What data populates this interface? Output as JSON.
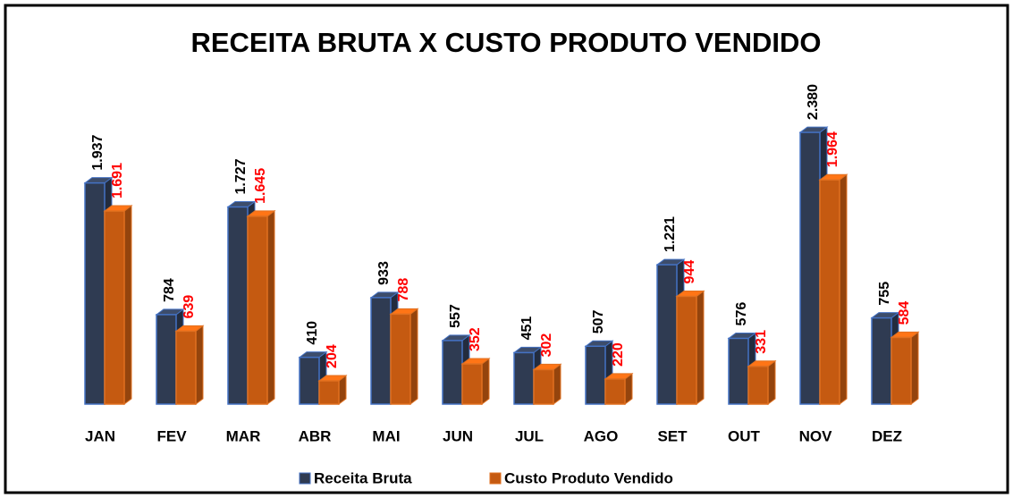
{
  "chart_data": {
    "type": "bar3d",
    "title": "RECEITA BRUTA X CUSTO PRODUTO VENDIDO",
    "categories": [
      "JAN",
      "FEV",
      "MAR",
      "ABR",
      "MAI",
      "JUN",
      "JUL",
      "AGO",
      "SET",
      "OUT",
      "NOV",
      "DEZ"
    ],
    "series": [
      {
        "name": "Receita Bruta",
        "color": "#2f3b52",
        "label_color": "#000000",
        "values": [
          1937,
          784,
          1727,
          410,
          933,
          557,
          451,
          507,
          1221,
          576,
          2380,
          755
        ],
        "value_labels": [
          "1.937",
          "784",
          "1.727",
          "410",
          "933",
          "557",
          "451",
          "507",
          "1.221",
          "576",
          "2.380",
          "755"
        ]
      },
      {
        "name": "Custo Produto Vendido",
        "color": "#c55a11",
        "label_color": "#ff0000",
        "values": [
          1691,
          639,
          1645,
          204,
          788,
          352,
          302,
          220,
          944,
          331,
          1964,
          584
        ],
        "value_labels": [
          "1.691",
          "639",
          "1.645",
          "204",
          "788",
          "352",
          "302",
          "220",
          "944",
          "331",
          "1.964",
          "584"
        ]
      }
    ],
    "legend": "bottom"
  }
}
